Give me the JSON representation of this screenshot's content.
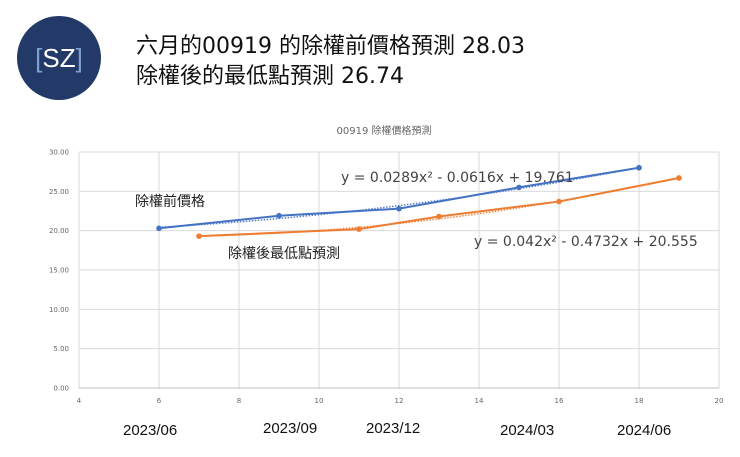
{
  "logo": {
    "left_bracket": "[",
    "text": "SZ",
    "right_bracket": "]",
    "bg_color": "#233a68"
  },
  "headline": {
    "line1": "六月的00919 的除權前價格預測 28.03",
    "line2": "除權後的最低點預測 26.74"
  },
  "annotations": {
    "series1_label": "除權前價格",
    "series2_label": "除權後最低點預測",
    "series1_trend_equation": "y = 0.0289x² - 0.0616x + 19.761",
    "series2_trend_equation": "y = 0.042x² - 0.4732x + 20.555"
  },
  "date_labels": [
    "2023/06",
    "2023/09",
    "2023/12",
    "2024/03",
    "2024/06"
  ],
  "chart_data": {
    "type": "scatter",
    "title": "00919 除權價格預測",
    "xlabel": "",
    "ylabel": "",
    "xlim": [
      4,
      20
    ],
    "ylim": [
      0,
      30
    ],
    "x_ticks": [
      "4",
      "6",
      "8",
      "10",
      "12",
      "14",
      "16",
      "18",
      "20"
    ],
    "y_ticks": [
      "0.00",
      "5.00",
      "10.00",
      "15.00",
      "20.00",
      "25.00",
      "30.00"
    ],
    "grid": true,
    "legend": "none",
    "series": [
      {
        "name": "除權前價格",
        "color": "#4472c4",
        "x": [
          6,
          9,
          12,
          15,
          18
        ],
        "y": [
          20.3,
          21.9,
          22.8,
          25.5,
          28.0
        ],
        "trendline": {
          "type": "polynomial",
          "order": 2,
          "equation": "y = 0.0289x² - 0.0616x + 19.761"
        }
      },
      {
        "name": "除權後最低點預測",
        "color": "#ed7d31",
        "x": [
          7,
          11,
          13,
          16,
          19
        ],
        "y": [
          19.3,
          20.2,
          21.8,
          23.7,
          26.7
        ],
        "trendline": {
          "type": "polynomial",
          "order": 2,
          "equation": "y = 0.042x² - 0.4732x + 20.555"
        }
      }
    ]
  }
}
